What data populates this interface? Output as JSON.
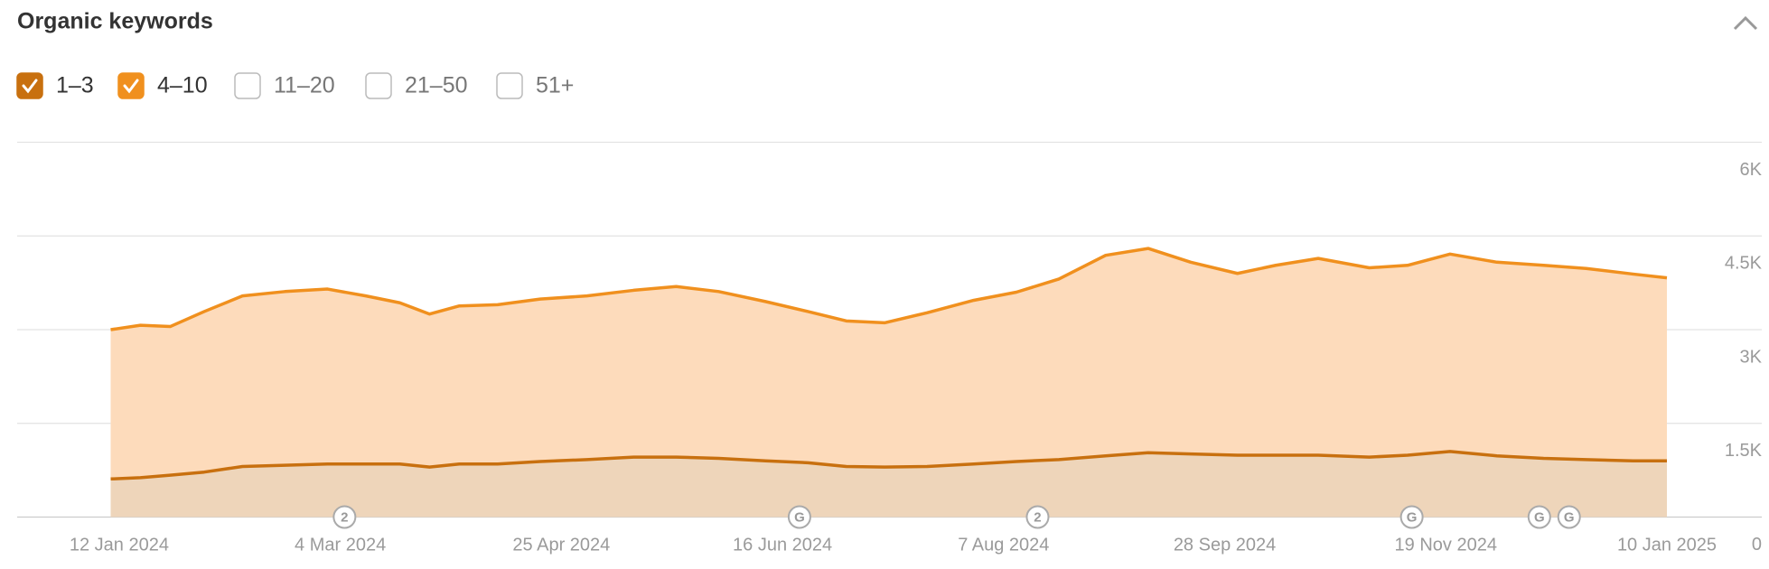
{
  "chart_data": {
    "type": "stacked_area",
    "title": "Organic keywords",
    "x": [
      "2024-01-10",
      "2024-01-17",
      "2024-01-24",
      "2024-02-01",
      "2024-02-10",
      "2024-02-20",
      "2024-03-01",
      "2024-03-10",
      "2024-03-18",
      "2024-03-25",
      "2024-04-01",
      "2024-04-10",
      "2024-04-20",
      "2024-05-01",
      "2024-05-12",
      "2024-05-22",
      "2024-06-01",
      "2024-06-12",
      "2024-06-22",
      "2024-07-01",
      "2024-07-10",
      "2024-07-20",
      "2024-07-31",
      "2024-08-10",
      "2024-08-20",
      "2024-08-31",
      "2024-09-10",
      "2024-09-20",
      "2024-10-01",
      "2024-10-10",
      "2024-10-20",
      "2024-11-01",
      "2024-11-10",
      "2024-11-20",
      "2024-12-01",
      "2024-12-12",
      "2024-12-22",
      "2025-01-02",
      "2025-01-10"
    ],
    "series": [
      {
        "name": "1–3",
        "color": "#c8700f",
        "fill": "#eed5ba",
        "checked": true,
        "values": [
          610,
          630,
          670,
          720,
          810,
          830,
          850,
          850,
          850,
          800,
          850,
          850,
          890,
          920,
          960,
          960,
          940,
          900,
          870,
          810,
          800,
          810,
          850,
          890,
          920,
          980,
          1030,
          1010,
          990,
          990,
          990,
          960,
          990,
          1050,
          980,
          940,
          920,
          900,
          900
        ]
      },
      {
        "name": "4–10",
        "color": "#f0901e",
        "fill": "#fddbbb",
        "checked": true,
        "values": [
          2390,
          2440,
          2380,
          2570,
          2730,
          2780,
          2800,
          2690,
          2580,
          2450,
          2530,
          2550,
          2600,
          2620,
          2670,
          2730,
          2670,
          2550,
          2420,
          2330,
          2310,
          2460,
          2620,
          2710,
          2890,
          3210,
          3270,
          3070,
          2910,
          3040,
          3150,
          3030,
          3040,
          3160,
          3100,
          3090,
          3060,
          2990,
          2930
        ]
      }
    ],
    "unchecked_filters": [
      "11–20",
      "21–50",
      "51+"
    ],
    "xlim": [
      "2024-01-10",
      "2025-01-10"
    ],
    "xticks": [
      {
        "value": "2024-01-12",
        "label": "12 Jan 2024"
      },
      {
        "value": "2024-03-04",
        "label": "4 Mar 2024"
      },
      {
        "value": "2024-04-25",
        "label": "25 Apr 2024"
      },
      {
        "value": "2024-06-16",
        "label": "16 Jun 2024"
      },
      {
        "value": "2024-08-07",
        "label": "7 Aug 2024"
      },
      {
        "value": "2024-09-28",
        "label": "28 Sep 2024"
      },
      {
        "value": "2024-11-19",
        "label": "19 Nov 2024"
      },
      {
        "value": "2025-01-10",
        "label": "10 Jan 2025"
      }
    ],
    "ylim": [
      0,
      6000
    ],
    "yticks": [
      0,
      {
        "value": 1500,
        "label": "1.5K"
      },
      {
        "value": 3000,
        "label": "3K"
      },
      {
        "value": 4500,
        "label": "4.5K"
      },
      {
        "value": 6000,
        "label": "6K"
      }
    ],
    "grid": true,
    "annotations": [
      {
        "date": "2024-03-05",
        "label": "2"
      },
      {
        "date": "2024-06-20",
        "label": "G"
      },
      {
        "date": "2024-08-15",
        "label": "2"
      },
      {
        "date": "2024-11-11",
        "label": "G"
      },
      {
        "date": "2024-12-11",
        "label": "G"
      },
      {
        "date": "2024-12-18",
        "label": "G"
      }
    ]
  }
}
